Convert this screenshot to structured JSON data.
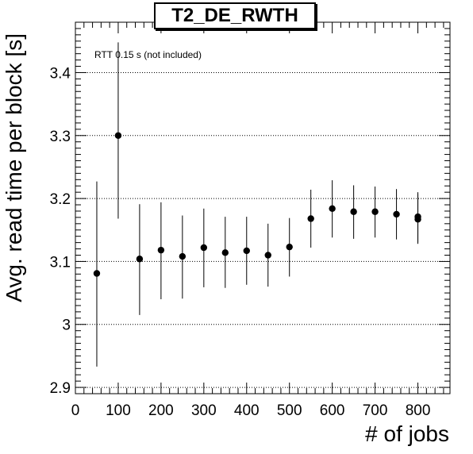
{
  "chart_data": {
    "type": "scatter",
    "title": "T2_DE_RWTH",
    "annotation": "RTT 0.15 s (not included)",
    "xlabel": "# of jobs",
    "ylabel": "Avg. read time per block [s]",
    "xlim": [
      0,
      875
    ],
    "ylim": [
      2.89,
      3.48
    ],
    "x_ticks": [
      0,
      100,
      200,
      300,
      400,
      500,
      600,
      700,
      800
    ],
    "y_ticks": [
      2.9,
      3,
      3.1,
      3.2,
      3.3,
      3.4
    ],
    "x_tick_labels": [
      "0",
      "100",
      "200",
      "300",
      "400",
      "500",
      "600",
      "700",
      "800"
    ],
    "y_tick_labels": [
      "2.9",
      "3",
      "3.1",
      "3.2",
      "3.3",
      "3.4"
    ],
    "grid": "horizontal-dotted",
    "series": [
      {
        "points": [
          {
            "x": 50,
            "y": 3.081,
            "err_low": 2.933,
            "err_high": 3.227
          },
          {
            "x": 100,
            "y": 3.3,
            "err_low": 3.168,
            "err_high": 3.448
          },
          {
            "x": 150,
            "y": 3.104,
            "err_low": 3.015,
            "err_high": 3.191
          },
          {
            "x": 200,
            "y": 3.118,
            "err_low": 3.04,
            "err_high": 3.194
          },
          {
            "x": 250,
            "y": 3.108,
            "err_low": 3.041,
            "err_high": 3.173
          },
          {
            "x": 300,
            "y": 3.122,
            "err_low": 3.059,
            "err_high": 3.184
          },
          {
            "x": 350,
            "y": 3.114,
            "err_low": 3.058,
            "err_high": 3.171
          },
          {
            "x": 400,
            "y": 3.117,
            "err_low": 3.063,
            "err_high": 3.171
          },
          {
            "x": 450,
            "y": 3.11,
            "err_low": 3.06,
            "err_high": 3.16
          },
          {
            "x": 500,
            "y": 3.123,
            "err_low": 3.076,
            "err_high": 3.169
          },
          {
            "x": 550,
            "y": 3.168,
            "err_low": 3.122,
            "err_high": 3.214
          },
          {
            "x": 600,
            "y": 3.184,
            "err_low": 3.138,
            "err_high": 3.229
          },
          {
            "x": 650,
            "y": 3.179,
            "err_low": 3.136,
            "err_high": 3.221
          },
          {
            "x": 700,
            "y": 3.179,
            "err_low": 3.138,
            "err_high": 3.219
          },
          {
            "x": 750,
            "y": 3.175,
            "err_low": 3.135,
            "err_high": 3.215
          },
          {
            "x": 800,
            "y": 3.171,
            "err_low": 3.13,
            "err_high": 3.21
          },
          {
            "x": 800,
            "y": 3.167,
            "err_low": 3.128,
            "err_high": 3.207
          }
        ]
      }
    ]
  }
}
